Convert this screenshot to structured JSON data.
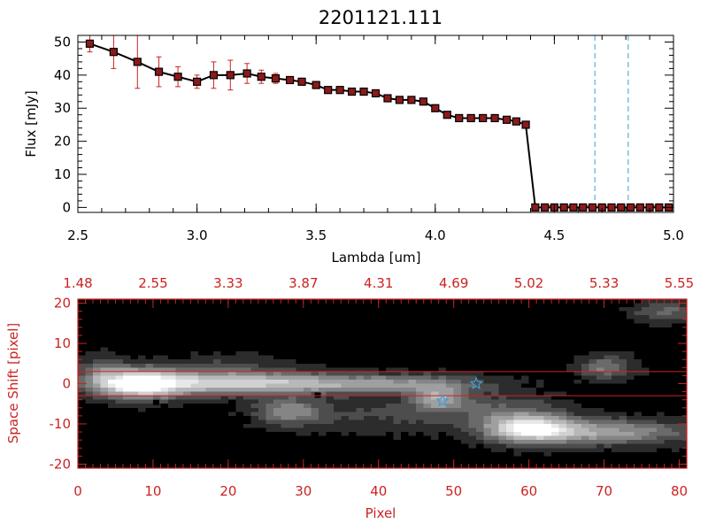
{
  "title": "2201121.111",
  "colors": {
    "red": "#cc2222",
    "marker": "#8b1a1a",
    "black": "#000000",
    "cyan": "#3a9fd6",
    "line": "#000000"
  },
  "chart_data": [
    {
      "type": "line",
      "title": "2201121.111",
      "xlabel": "Lambda [um]",
      "ylabel": "Flux [mJy]",
      "xlim": [
        2.5,
        5.0
      ],
      "ylim": [
        -1.5,
        52
      ],
      "xticks": [
        "2.5",
        "3.0",
        "3.5",
        "4.0",
        "4.5",
        "5.0"
      ],
      "xtick_values": [
        2.5,
        3.0,
        3.5,
        4.0,
        4.5,
        5.0
      ],
      "yticks": [
        "0",
        "10",
        "20",
        "30",
        "40",
        "50"
      ],
      "ytick_values": [
        0,
        10,
        20,
        30,
        40,
        50
      ],
      "grid": false,
      "series": [
        {
          "x": [
            2.55,
            2.65,
            2.75,
            2.84,
            2.92,
            3.0,
            3.07,
            3.14,
            3.21,
            3.27,
            3.33,
            3.39,
            3.44,
            3.5,
            3.55,
            3.6,
            3.65,
            3.7,
            3.75,
            3.8,
            3.85,
            3.9,
            3.95,
            4.0,
            4.05,
            4.1,
            4.15,
            4.2,
            4.25,
            4.3,
            4.34,
            4.38,
            4.42,
            4.46,
            4.5,
            4.54,
            4.58,
            4.62,
            4.66,
            4.7,
            4.74,
            4.78,
            4.82,
            4.86,
            4.9,
            4.94,
            4.98
          ],
          "y": [
            49.5,
            47.0,
            44.0,
            41.0,
            39.5,
            38.0,
            40.0,
            40.0,
            40.5,
            39.5,
            39.0,
            38.5,
            38.0,
            37.0,
            35.5,
            35.5,
            35.0,
            35.0,
            34.5,
            33.0,
            32.5,
            32.5,
            32.0,
            30.0,
            28.0,
            27.0,
            27.0,
            27.0,
            27.0,
            26.5,
            26.0,
            25.0,
            0.0,
            0.0,
            0.0,
            0.0,
            0.0,
            0.0,
            0.0,
            0.0,
            0.0,
            0.0,
            0.0,
            0.0,
            0.0,
            0.0,
            0.0
          ],
          "yerr": [
            2.5,
            5.0,
            8.0,
            4.5,
            3.0,
            2.0,
            4.0,
            4.5,
            3.0,
            2.0,
            1.5,
            1.0,
            1.0,
            0.5,
            0.5,
            0.5,
            0.5,
            0.5,
            0.5,
            0.5,
            0.5,
            0.5,
            0.5,
            0.5,
            0.5,
            0.5,
            0.5,
            0.5,
            0.5,
            0.5,
            0.5,
            0.5,
            0.0,
            0.0,
            0.0,
            0.0,
            0.0,
            0.0,
            0.0,
            0.0,
            0.0,
            0.0,
            0.0,
            0.0,
            0.0,
            0.0,
            0.0
          ]
        }
      ],
      "vlines": [
        4.67,
        4.81
      ],
      "hline": 0.5
    },
    {
      "type": "heatmap",
      "xlabel": "Pixel",
      "ylabel": "Space Shift [pixel]",
      "xlim": [
        0,
        81
      ],
      "ylim": [
        -21,
        21
      ],
      "xticks": [
        "0",
        "10",
        "20",
        "30",
        "40",
        "50",
        "60",
        "70",
        "80"
      ],
      "xtick_values": [
        0,
        10,
        20,
        30,
        40,
        50,
        60,
        70,
        80
      ],
      "yticks": [
        "-20",
        "-10",
        "0",
        "10",
        "20"
      ],
      "ytick_values": [
        -20,
        -10,
        0,
        10,
        20
      ],
      "top_ticks": [
        "1.48",
        "2.55",
        "3.33",
        "3.87",
        "4.31",
        "4.69",
        "5.02",
        "5.33",
        "5.55"
      ],
      "hlines": [
        3,
        -3
      ],
      "markers": [
        {
          "x": 53,
          "y": 0,
          "shape": "star"
        },
        {
          "x": 48.5,
          "y": -4.3,
          "shape": "star"
        }
      ]
    }
  ]
}
